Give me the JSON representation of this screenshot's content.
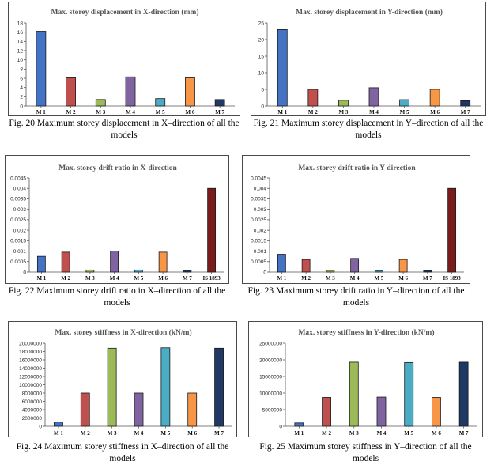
{
  "chart_data": [
    {
      "type": "bar",
      "title": "Max. storey displacement in X-direction (mm)",
      "categories": [
        "M 1",
        "M 2",
        "M 3",
        "M 4",
        "M 5",
        "M 6",
        "M 7"
      ],
      "values": [
        16.2,
        6.1,
        1.4,
        6.3,
        1.6,
        6.1,
        1.4
      ],
      "ylim": [
        0,
        18
      ],
      "yticks": [
        "0",
        "2",
        "4",
        "6",
        "8",
        "10",
        "12",
        "14",
        "16",
        "18"
      ],
      "colors": [
        "#4472c4",
        "#c0504d",
        "#9bbb59",
        "#8064a2",
        "#4bacc6",
        "#f79646",
        "#1f3864"
      ],
      "caption": "Fig. 20  Maximum storey displacement in X–direction of all the models"
    },
    {
      "type": "bar",
      "title": "Max. storey displacement in Y-direction (mm)",
      "categories": [
        "M 1",
        "M 2",
        "M 3",
        "M 4",
        "M 5",
        "M 6",
        "M 7"
      ],
      "values": [
        23,
        5,
        1.7,
        5.5,
        1.9,
        5,
        1.6
      ],
      "ylim": [
        0,
        25
      ],
      "yticks": [
        "0",
        "5",
        "10",
        "15",
        "20",
        "25"
      ],
      "colors": [
        "#4472c4",
        "#c0504d",
        "#9bbb59",
        "#8064a2",
        "#4bacc6",
        "#f79646",
        "#1f3864"
      ],
      "caption": "Fig. 21  Maximum storey displacement in Y–direction of all the models"
    },
    {
      "type": "bar",
      "title": "Max. storey drift ratio in X-direction",
      "categories": [
        "M 1",
        "M 2",
        "M 3",
        "M 4",
        "M 5",
        "M 6",
        "M 7",
        "IS 1893"
      ],
      "values": [
        0.00075,
        0.00095,
        0.0001,
        0.001,
        0.0001,
        0.00095,
        8e-05,
        0.004
      ],
      "ylim": [
        0,
        0.0045
      ],
      "yticks": [
        "0",
        "0.0005",
        "0.001",
        "0.0015",
        "0.002",
        "0.0025",
        "0.003",
        "0.0035",
        "0.004",
        "0.0045"
      ],
      "colors": [
        "#4472c4",
        "#c0504d",
        "#9bbb59",
        "#8064a2",
        "#4bacc6",
        "#f79646",
        "#1f3864",
        "#7b1c1c"
      ],
      "caption": "Fig. 22  Maximum storey drift ratio in X–direction of all the models"
    },
    {
      "type": "bar",
      "title": "Max. storey drift ratio in Y-direction",
      "categories": [
        "M 1",
        "M 2",
        "M 3",
        "M 4",
        "M 5",
        "M 6",
        "M 7",
        "IS 1893"
      ],
      "values": [
        0.00085,
        0.0006,
        8e-05,
        0.00065,
        7e-05,
        0.0006,
        7e-05,
        0.004
      ],
      "ylim": [
        0,
        0.0045
      ],
      "yticks": [
        "0",
        "0.0005",
        "0.001",
        "0.0015",
        "0.002",
        "0.0025",
        "0.003",
        "0.0035",
        "0.004",
        "0.0045"
      ],
      "colors": [
        "#4472c4",
        "#c0504d",
        "#9bbb59",
        "#8064a2",
        "#4bacc6",
        "#f79646",
        "#1f3864",
        "#7b1c1c"
      ],
      "caption": "Fig. 23  Maximum storey drift ratio in Y–direction of all the models"
    },
    {
      "type": "bar",
      "title": "Max. storey stiffness in X-direction (kN/m)",
      "categories": [
        "M 1",
        "M 2",
        "M 3",
        "M 4",
        "M 5",
        "M 6",
        "M 7"
      ],
      "values": [
        1000000,
        8000000,
        18800000,
        8000000,
        18900000,
        8000000,
        18800000
      ],
      "ylim": [
        0,
        20000000
      ],
      "yticks": [
        "0",
        "2000000",
        "4000000",
        "6000000",
        "8000000",
        "10000000",
        "12000000",
        "14000000",
        "16000000",
        "18000000",
        "20000000"
      ],
      "colors": [
        "#4472c4",
        "#c0504d",
        "#9bbb59",
        "#8064a2",
        "#4bacc6",
        "#f79646",
        "#1f3864"
      ],
      "caption": "Fig. 24  Maximum storey stiffness in X–direction of all the models"
    },
    {
      "type": "bar",
      "title": "Max. storey stiffness in Y-direction (kN/m)",
      "categories": [
        "M 1",
        "M 2",
        "M 3",
        "M 4",
        "M 5",
        "M 6",
        "M 7"
      ],
      "values": [
        1000000,
        8700000,
        19300000,
        8800000,
        19200000,
        8700000,
        19300000
      ],
      "ylim": [
        0,
        25000000
      ],
      "yticks": [
        "0",
        "5000000",
        "10000000",
        "15000000",
        "20000000",
        "25000000"
      ],
      "colors": [
        "#4472c4",
        "#c0504d",
        "#9bbb59",
        "#8064a2",
        "#4bacc6",
        "#f79646",
        "#1f3864"
      ],
      "caption": "Fig. 25  Maximum storey stiffness in Y–direction of all the models"
    }
  ]
}
